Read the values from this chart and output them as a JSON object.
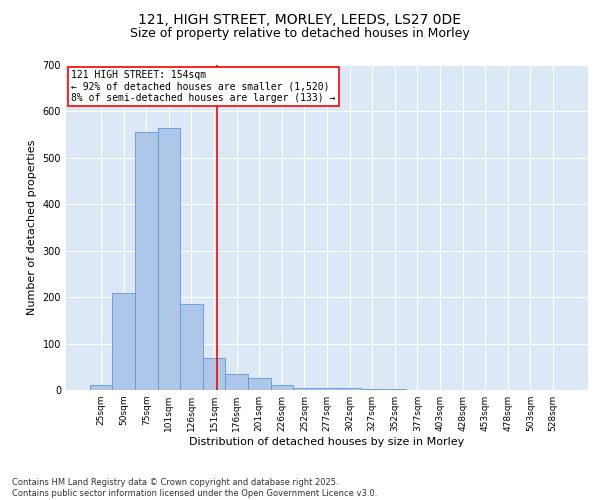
{
  "title_line1": "121, HIGH STREET, MORLEY, LEEDS, LS27 0DE",
  "title_line2": "Size of property relative to detached houses in Morley",
  "xlabel": "Distribution of detached houses by size in Morley",
  "ylabel": "Number of detached properties",
  "categories": [
    "25sqm",
    "50sqm",
    "75sqm",
    "101sqm",
    "126sqm",
    "151sqm",
    "176sqm",
    "201sqm",
    "226sqm",
    "252sqm",
    "277sqm",
    "302sqm",
    "327sqm",
    "352sqm",
    "377sqm",
    "403sqm",
    "428sqm",
    "453sqm",
    "478sqm",
    "503sqm",
    "528sqm"
  ],
  "values": [
    10,
    210,
    555,
    565,
    185,
    70,
    35,
    25,
    10,
    5,
    5,
    5,
    3,
    2,
    1,
    1,
    1,
    1,
    1,
    1,
    1
  ],
  "bar_color": "#aec6e8",
  "bar_edge_color": "#5b9bd5",
  "background_color": "#dce8f5",
  "ylim": [
    0,
    700
  ],
  "yticks": [
    0,
    100,
    200,
    300,
    400,
    500,
    600,
    700
  ],
  "red_line_x": 5.12,
  "annotation_title": "121 HIGH STREET: 154sqm",
  "annotation_line2": "← 92% of detached houses are smaller (1,520)",
  "annotation_line3": "8% of semi-detached houses are larger (133) →",
  "footer_line1": "Contains HM Land Registry data © Crown copyright and database right 2025.",
  "footer_line2": "Contains public sector information licensed under the Open Government Licence v3.0.",
  "title_fontsize": 10,
  "subtitle_fontsize": 9,
  "tick_fontsize": 6.5,
  "label_fontsize": 8,
  "annotation_fontsize": 7,
  "footer_fontsize": 6
}
